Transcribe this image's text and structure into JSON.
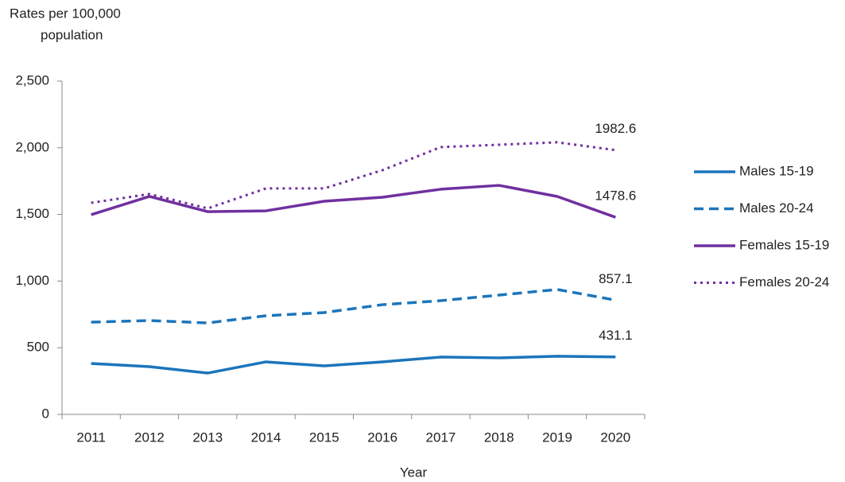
{
  "chart_data": {
    "type": "line",
    "ylabel": [
      "Rates per 100,000",
      "population"
    ],
    "xlabel": "Year",
    "categories": [
      "2011",
      "2012",
      "2013",
      "2014",
      "2015",
      "2016",
      "2017",
      "2018",
      "2019",
      "2020"
    ],
    "series": [
      {
        "name": "Males 15-19",
        "color": "#1b75bb",
        "dash": "solid",
        "values": [
          382,
          358,
          310,
          394,
          364,
          394,
          430,
          424,
          436,
          431.1
        ]
      },
      {
        "name": "Males 20-24",
        "color": "#1b75bb",
        "dash": "dashed",
        "values": [
          692,
          704,
          686,
          740,
          764,
          823,
          853,
          895,
          937,
          857.1
        ]
      },
      {
        "name": "Females 15-19",
        "color": "#7030a0",
        "dash": "solid",
        "values": [
          1498,
          1635,
          1521,
          1527,
          1599,
          1629,
          1689,
          1718,
          1635,
          1478.6
        ]
      },
      {
        "name": "Females 20-24",
        "color": "#7030a0",
        "dash": "dotted",
        "values": [
          1587,
          1653,
          1545,
          1695,
          1695,
          1832,
          2005,
          2023,
          2041,
          1982.6
        ]
      }
    ],
    "ylim": [
      0,
      2500
    ],
    "yticks": [
      0,
      500,
      {
        "value": 1000,
        "label": "1,000"
      },
      {
        "value": 1500,
        "label": "1,500"
      },
      {
        "value": 2000,
        "label": "2,000"
      },
      {
        "value": 2500,
        "label": "2,500"
      }
    ],
    "legend": "right"
  }
}
